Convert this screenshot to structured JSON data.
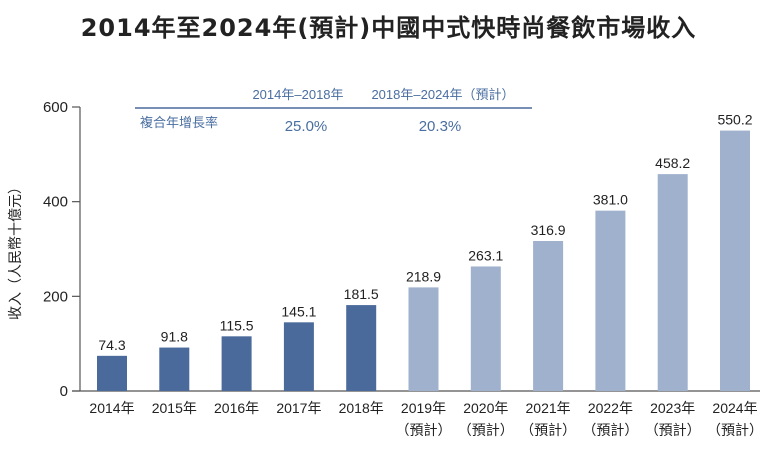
{
  "chart_data": {
    "type": "bar",
    "title": "2014年至2024年(預計)中國中式快時尚餐飲市場收入",
    "ylabel": "收入（人民幣十億元）",
    "xlabel": "",
    "ylim": [
      0,
      600
    ],
    "yticks": [
      0,
      200,
      400,
      600
    ],
    "categories": [
      {
        "year": "2014年",
        "note": ""
      },
      {
        "year": "2015年",
        "note": ""
      },
      {
        "year": "2016年",
        "note": ""
      },
      {
        "year": "2017年",
        "note": ""
      },
      {
        "year": "2018年",
        "note": ""
      },
      {
        "year": "2019年",
        "note": "（預計）"
      },
      {
        "year": "2020年",
        "note": "（預計）"
      },
      {
        "year": "2021年",
        "note": "（預計）"
      },
      {
        "year": "2022年",
        "note": "（預計）"
      },
      {
        "year": "2023年",
        "note": "（預計）"
      },
      {
        "year": "2024年",
        "note": "（預計）"
      }
    ],
    "values": [
      74.3,
      91.8,
      115.5,
      145.1,
      181.5,
      218.9,
      263.1,
      316.9,
      381.0,
      458.2,
      550.2
    ],
    "value_labels": [
      "74.3",
      "91.8",
      "115.5",
      "145.1",
      "181.5",
      "218.9",
      "263.1",
      "316.9",
      "381.0",
      "458.2",
      "550.2"
    ],
    "historical_count": 5,
    "colors": {
      "historical": "#4a6a9b",
      "forecast": "#9fb1cc",
      "cagr_text": "#4a6ea0",
      "axis": "#555555"
    },
    "grid": false,
    "cagr_table": {
      "row_label": "複合年增長率",
      "periods": [
        {
          "label": "2014年–2018年",
          "value": "25.0%"
        },
        {
          "label": "2018年–2024年（預計）",
          "value": "20.3%"
        }
      ]
    }
  }
}
